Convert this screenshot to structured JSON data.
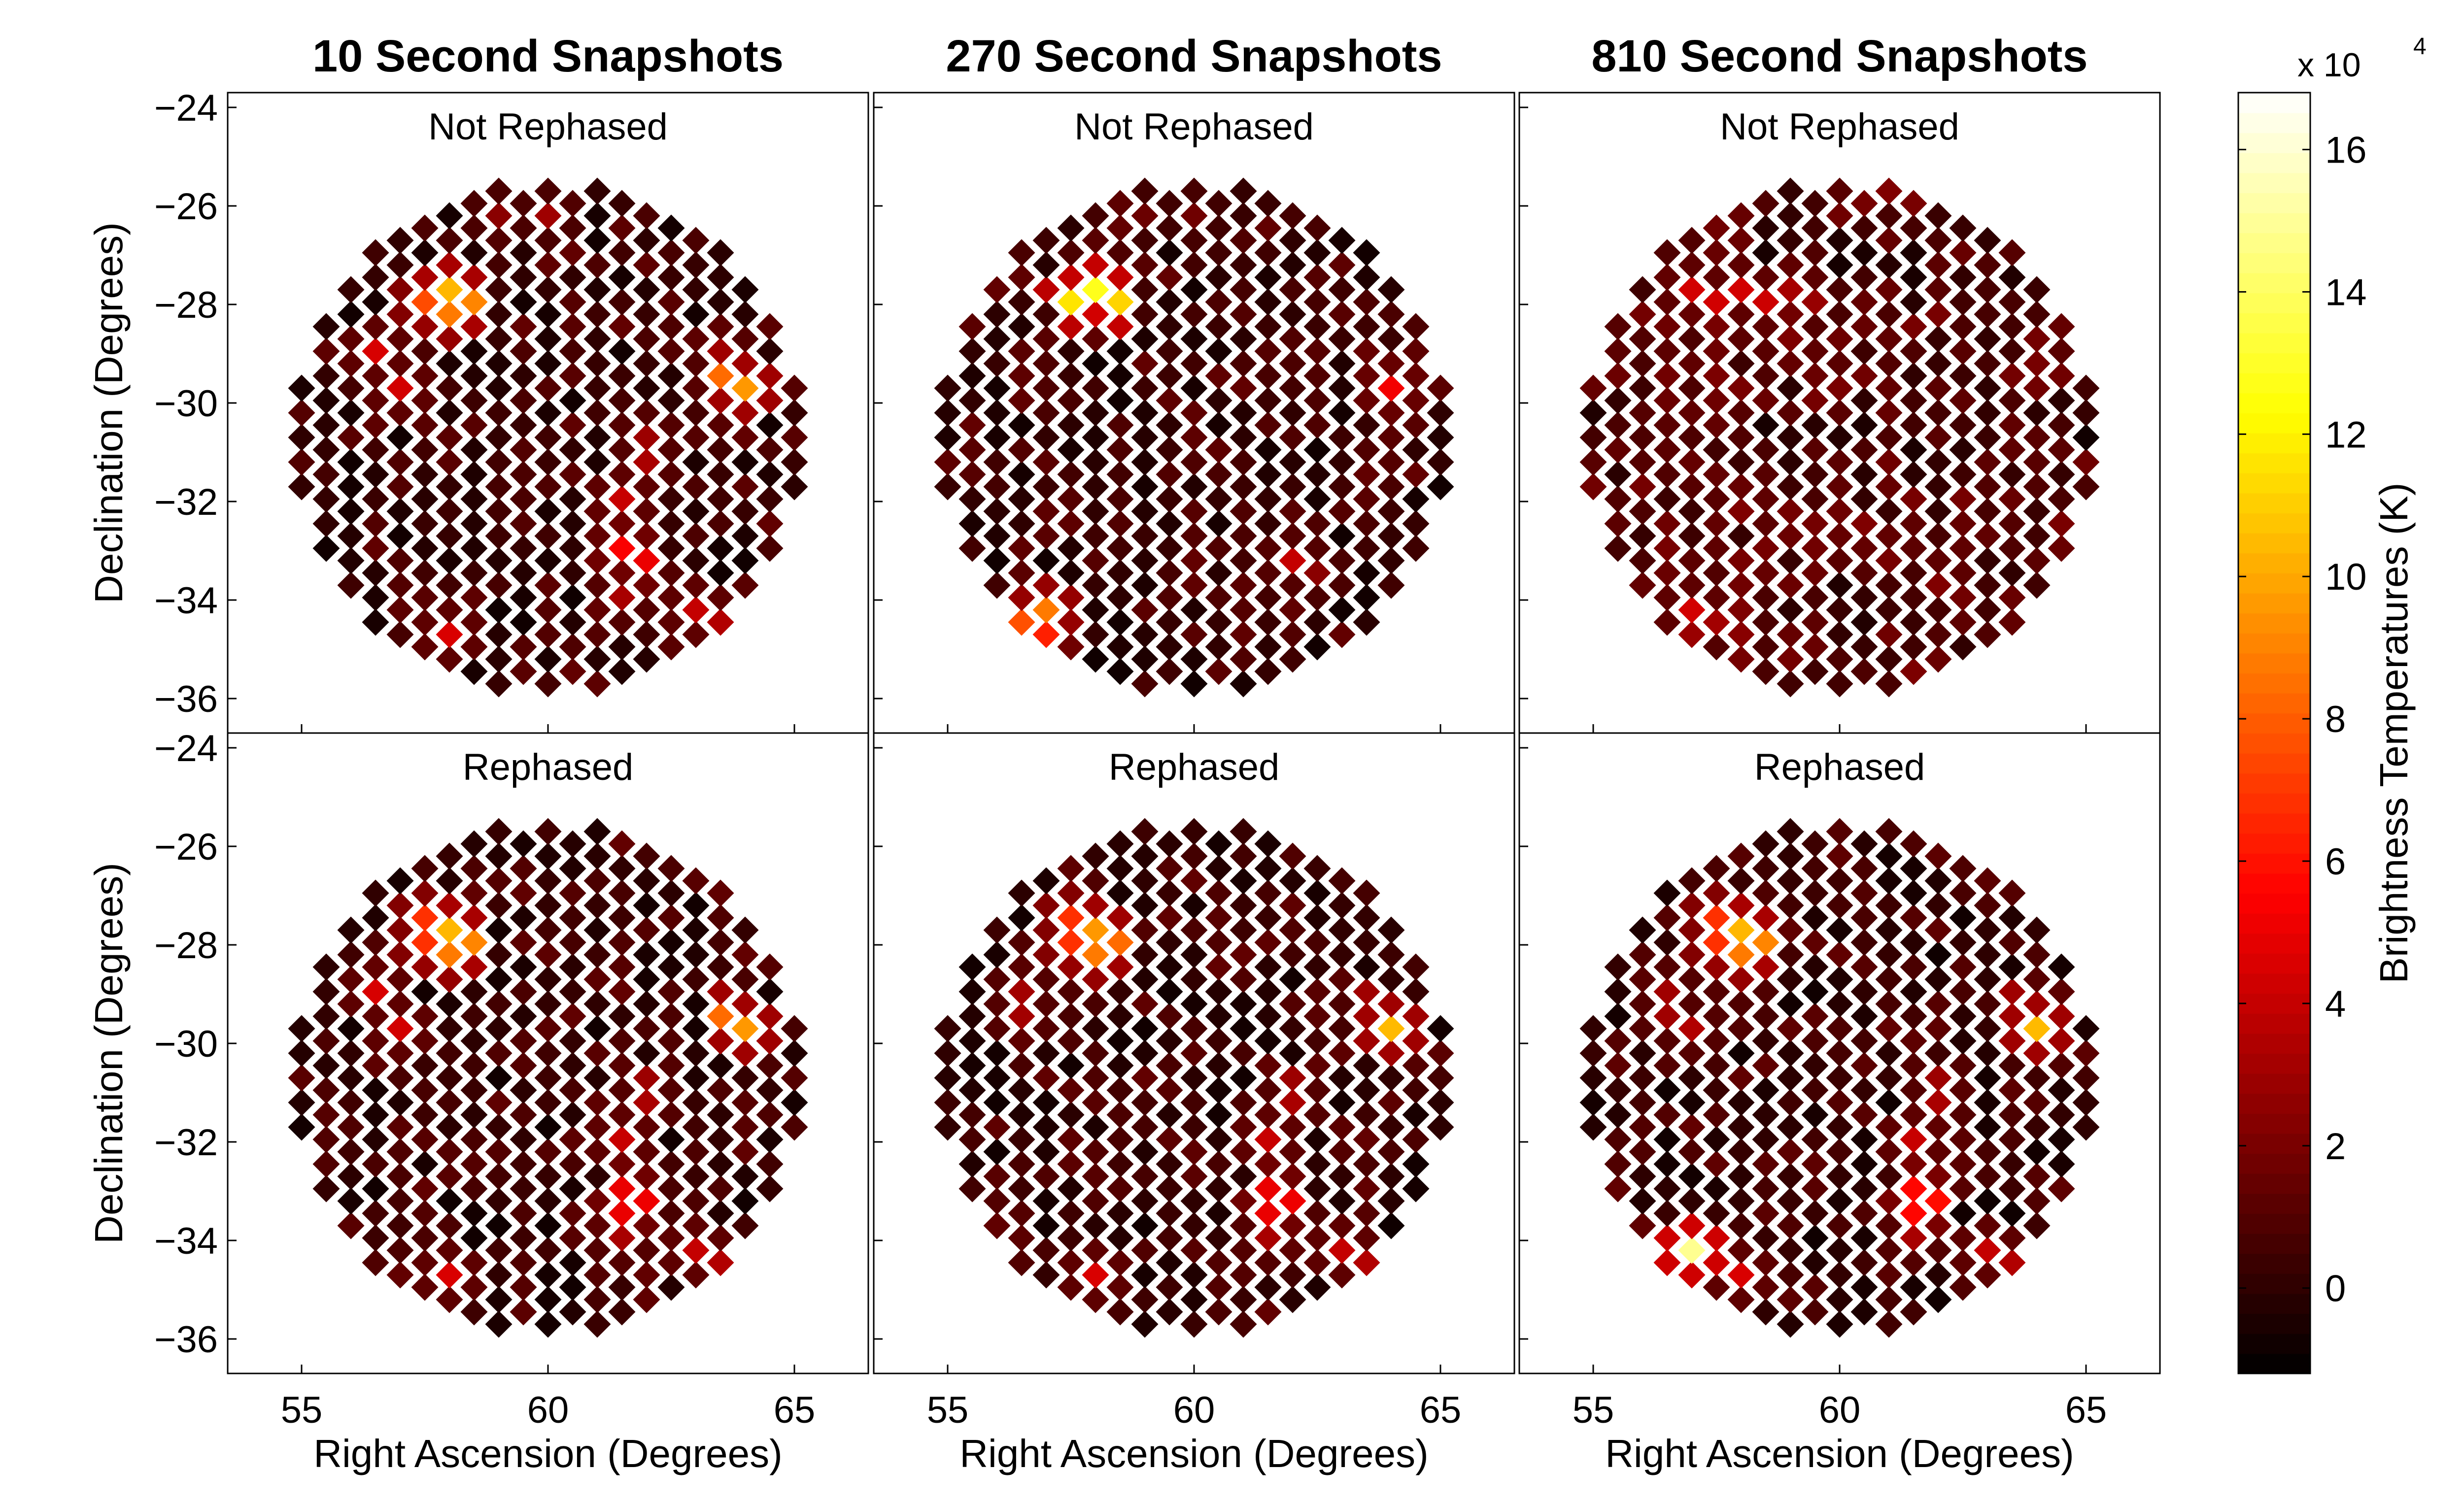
{
  "figure": {
    "column_titles": [
      "10 Second Snapshots",
      "270 Second Snapshots",
      "810 Second Snapshots"
    ],
    "row_labels": [
      "Not Rephased",
      "Rephased"
    ],
    "xlabel": "Right Ascension (Degrees)",
    "ylabel": "Declination (Degrees)"
  },
  "chart_data": {
    "type": "heatmap",
    "panels": [
      {
        "id": "p11",
        "column_title": "10 Second Snapshots",
        "row_label": "Not Rephased",
        "seed": 11,
        "hotspots": [
          [
            57.6,
            -27.8,
            9
          ],
          [
            58.2,
            -27.8,
            13
          ],
          [
            57.9,
            -28.0,
            11
          ],
          [
            63.8,
            -29.6,
            12
          ],
          [
            56.4,
            -29.0,
            5
          ],
          [
            56.9,
            -29.8,
            5
          ],
          [
            61.7,
            -33.1,
            7
          ],
          [
            61.7,
            -31.9,
            5
          ],
          [
            62.0,
            -31.0,
            4
          ],
          [
            58.0,
            -34.6,
            5
          ],
          [
            63.2,
            -34.3,
            5
          ],
          [
            61.3,
            -34.0,
            4
          ],
          [
            60.0,
            -26.2,
            3
          ],
          [
            59.2,
            -26.2,
            3
          ]
        ]
      },
      {
        "id": "p12",
        "column_title": "270 Second Snapshots",
        "row_label": "Not Rephased",
        "seed": 22,
        "hotspots": [
          [
            57.7,
            -27.8,
            15
          ],
          [
            58.2,
            -27.8,
            16
          ],
          [
            57.9,
            -28.1,
            5
          ],
          [
            63.9,
            -29.6,
            6
          ],
          [
            56.8,
            -34.3,
            11
          ],
          [
            57.1,
            -34.7,
            7
          ],
          [
            62.0,
            -33.2,
            4
          ],
          [
            62.3,
            -33.5,
            3
          ],
          [
            58.8,
            -26.3,
            2
          ],
          [
            60.1,
            -26.3,
            2
          ]
        ]
      },
      {
        "id": "p13",
        "column_title": "810 Second Snapshots",
        "row_label": "Not Rephased",
        "seed": 33,
        "hotspots": [
          [
            56.9,
            -27.8,
            5
          ],
          [
            57.5,
            -27.8,
            5
          ],
          [
            58.1,
            -27.8,
            5
          ],
          [
            58.6,
            -27.8,
            5
          ],
          [
            59.2,
            -27.8,
            4
          ],
          [
            56.9,
            -34.3,
            5
          ],
          [
            57.3,
            -34.6,
            4
          ],
          [
            58.1,
            -34.5,
            3
          ],
          [
            62.1,
            -33.8,
            2.5
          ],
          [
            62.6,
            -33.9,
            2
          ]
        ]
      },
      {
        "id": "p21",
        "column_title": "10 Second Snapshots",
        "row_label": "Rephased",
        "seed": 44,
        "hotspots": [
          [
            57.6,
            -27.7,
            9
          ],
          [
            58.2,
            -27.8,
            13
          ],
          [
            57.9,
            -28.0,
            11
          ],
          [
            63.8,
            -29.6,
            12
          ],
          [
            56.4,
            -29.0,
            5
          ],
          [
            56.9,
            -29.8,
            5
          ],
          [
            61.7,
            -33.2,
            7
          ],
          [
            61.7,
            -31.9,
            5
          ],
          [
            62.0,
            -31.0,
            4
          ],
          [
            58.0,
            -34.6,
            5
          ],
          [
            63.2,
            -34.3,
            5
          ],
          [
            61.3,
            -34.0,
            4
          ]
        ]
      },
      {
        "id": "p22",
        "column_title": "270 Second Snapshots",
        "row_label": "Rephased",
        "seed": 55,
        "hotspots": [
          [
            57.6,
            -27.7,
            9
          ],
          [
            58.2,
            -27.8,
            12
          ],
          [
            57.9,
            -28.0,
            11
          ],
          [
            63.9,
            -29.6,
            12
          ],
          [
            56.5,
            -29.2,
            4
          ],
          [
            61.7,
            -33.2,
            7
          ],
          [
            61.7,
            -31.9,
            5
          ],
          [
            62.0,
            -31.0,
            4
          ],
          [
            58.0,
            -34.6,
            5
          ],
          [
            63.2,
            -34.3,
            5
          ],
          [
            61.3,
            -34.0,
            4
          ]
        ]
      },
      {
        "id": "p23",
        "column_title": "810 Second Snapshots",
        "row_label": "Rephased",
        "seed": 66,
        "hotspots": [
          [
            57.6,
            -27.7,
            9
          ],
          [
            58.2,
            -27.8,
            13
          ],
          [
            57.9,
            -28.0,
            11
          ],
          [
            63.9,
            -29.6,
            12
          ],
          [
            56.4,
            -29.2,
            4
          ],
          [
            56.9,
            -29.8,
            4
          ],
          [
            61.7,
            -33.2,
            8
          ],
          [
            61.7,
            -31.9,
            5
          ],
          [
            62.0,
            -31.0,
            4
          ],
          [
            56.9,
            -34.3,
            17
          ],
          [
            58.0,
            -34.6,
            5
          ],
          [
            63.2,
            -34.3,
            5
          ],
          [
            61.3,
            -34.0,
            4
          ]
        ]
      }
    ],
    "extent": {
      "center_ra": 60,
      "center_dec": -30.7,
      "radius_deg": 5.2
    },
    "xlim": [
      53.5,
      66.5
    ],
    "ylim": [
      -36.7,
      -23.7
    ],
    "xticks": [
      55,
      60,
      65
    ],
    "yticks": [
      -24,
      -26,
      -28,
      -30,
      -32,
      -34,
      -36
    ],
    "xtick_labels": [
      "55",
      "60",
      "65"
    ],
    "ytick_labels": [
      "−24",
      "−26",
      "−28",
      "−30",
      "−32",
      "−34",
      "−36"
    ],
    "colorbar": {
      "label": "Brightness Temperatures (K)",
      "multiplier_label": "x 10",
      "multiplier_exponent": "4",
      "range": [
        -1.2,
        16.8
      ],
      "ticks": [
        0,
        2,
        4,
        6,
        8,
        10,
        12,
        14,
        16
      ],
      "tick_labels": [
        "0",
        "2",
        "4",
        "6",
        "8",
        "10",
        "12",
        "14",
        "16"
      ],
      "colormap": "hot"
    }
  }
}
